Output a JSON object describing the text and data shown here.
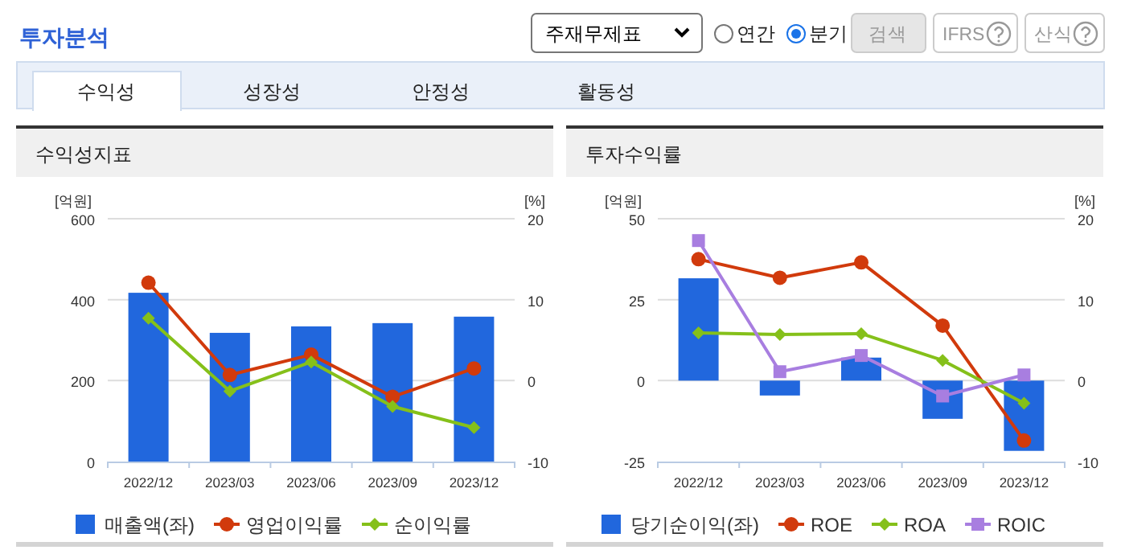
{
  "chart_data": [
    {
      "type": "other",
      "title": "투자분석",
      "annotations": [
        "주재무제표",
        "연간",
        "분기",
        "검색",
        "IFRS",
        "산식",
        "수익성",
        "성장성",
        "안정성",
        "활동성"
      ]
    },
    {
      "type": "bar",
      "title": "수익성지표",
      "ylabel": "[억원]",
      "y2label": "[%]",
      "categories": [
        "2022/12",
        "2023/03",
        "2023/06",
        "2023/09",
        "2023/12"
      ],
      "ylim": [
        0,
        600
      ],
      "yticks": [
        0,
        200,
        400,
        600
      ],
      "y2lim": [
        -10,
        20
      ],
      "y2ticks": [
        -10,
        0,
        10,
        20
      ],
      "grid": "y",
      "legend": "bottom",
      "series": [
        {
          "name": "매출액(좌)",
          "type": "bar",
          "color": "#2167dd",
          "values": [
            417,
            318,
            334,
            342,
            358
          ]
        },
        {
          "name": "영업이익률",
          "type": "line",
          "axis": "y2",
          "marker": "circle",
          "color": "#d13a0c",
          "values": [
            12.1,
            0.7,
            3.2,
            -2.0,
            1.5
          ]
        },
        {
          "name": "순이익률",
          "type": "line",
          "axis": "y2",
          "marker": "diamond",
          "color": "#85c01a",
          "values": [
            7.7,
            -1.3,
            2.3,
            -3.2,
            -5.8
          ]
        }
      ]
    },
    {
      "type": "bar",
      "title": "투자수익률",
      "ylabel": "[억원]",
      "y2label": "[%]",
      "categories": [
        "2022/12",
        "2023/03",
        "2023/06",
        "2023/09",
        "2023/12"
      ],
      "ylim": [
        -25,
        50
      ],
      "yticks": [
        -25,
        0,
        25,
        50
      ],
      "y2lim": [
        -10,
        20
      ],
      "y2ticks": [
        -10,
        0,
        10,
        20
      ],
      "grid": "y",
      "legend": "bottom",
      "series": [
        {
          "name": "당기순이익(좌)",
          "type": "bar",
          "color": "#2167dd",
          "values": [
            31.6,
            -4.6,
            7.1,
            -11.8,
            -21.7
          ]
        },
        {
          "name": "ROE",
          "type": "line",
          "axis": "y2",
          "marker": "circle",
          "color": "#d13a0c",
          "values": [
            15.0,
            12.7,
            14.6,
            6.8,
            -7.4
          ]
        },
        {
          "name": "ROA",
          "type": "line",
          "axis": "y2",
          "marker": "diamond",
          "color": "#85c01a",
          "values": [
            5.9,
            5.7,
            5.8,
            2.5,
            -2.8
          ]
        },
        {
          "name": "ROIC",
          "type": "line",
          "axis": "y2",
          "marker": "square",
          "color": "#a87ee0",
          "values": [
            17.3,
            1.1,
            3.1,
            -1.9,
            0.7
          ]
        }
      ]
    }
  ]
}
